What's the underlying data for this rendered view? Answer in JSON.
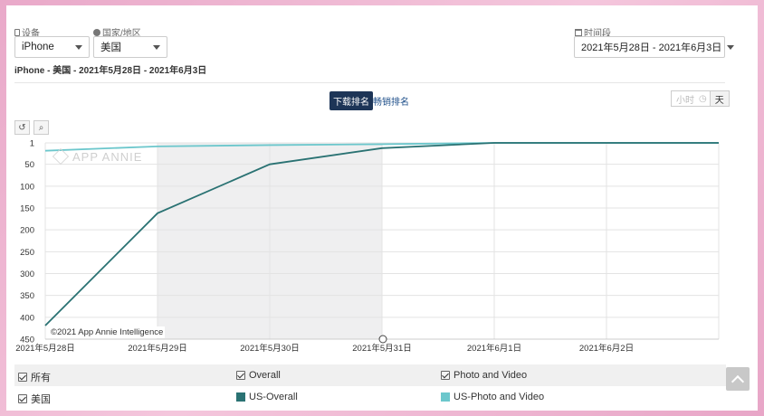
{
  "filters": {
    "device": {
      "label": "设备",
      "value": "iPhone"
    },
    "country": {
      "label": "国家/地区",
      "value": "美国"
    },
    "period": {
      "label": "时间段",
      "value": "2021年5月28日 - 2021年6月3日"
    }
  },
  "subtitle": "iPhone - 美国 - 2021年5月28日 - 2021年6月3日",
  "tabs": {
    "active": "下载排名",
    "other": "畅销排名"
  },
  "granularity": {
    "hour": "小时",
    "day": "天"
  },
  "watermark": {
    "logo_text": "APP ANNIE",
    "copyright": "©2021 App Annie Intelligence"
  },
  "legend": {
    "all_label": "所有",
    "country_label": "美国",
    "items": [
      {
        "label": "Overall",
        "series": "US-Overall",
        "color": "#2a7273"
      },
      {
        "label": "Photo and Video",
        "series": "US-Photo and Video",
        "color": "#6cc7cc"
      }
    ]
  },
  "colors": {
    "overall": "#2a7273",
    "photo_video": "#6cc7cc",
    "highlight_band": "#efeff0",
    "primary_tab": "#1d3557"
  },
  "chart_data": {
    "type": "line",
    "x": [
      "2021年5月28日",
      "2021年5月29日",
      "2021年5月30日",
      "2021年5月31日",
      "2021年6月1日",
      "2021年6月2日",
      "2021年6月3日"
    ],
    "x_tick_labels": [
      "2021年5月28日",
      "2021年5月29日",
      "2021年5月30日",
      "2021年5月31日",
      "2021年6月1日",
      "2021年6月2日"
    ],
    "y_ticks": [
      1,
      50,
      100,
      150,
      200,
      250,
      300,
      350,
      400,
      450
    ],
    "ylim": [
      1,
      450
    ],
    "y_reversed": true,
    "highlight_range": [
      "2021年5月29日",
      "2021年5月31日"
    ],
    "series": [
      {
        "name": "US-Overall",
        "values": [
          419,
          162,
          50,
          13,
          1,
          1,
          1
        ]
      },
      {
        "name": "US-Photo and Video",
        "values": [
          19,
          9,
          6,
          4,
          1,
          1,
          1
        ]
      }
    ]
  }
}
